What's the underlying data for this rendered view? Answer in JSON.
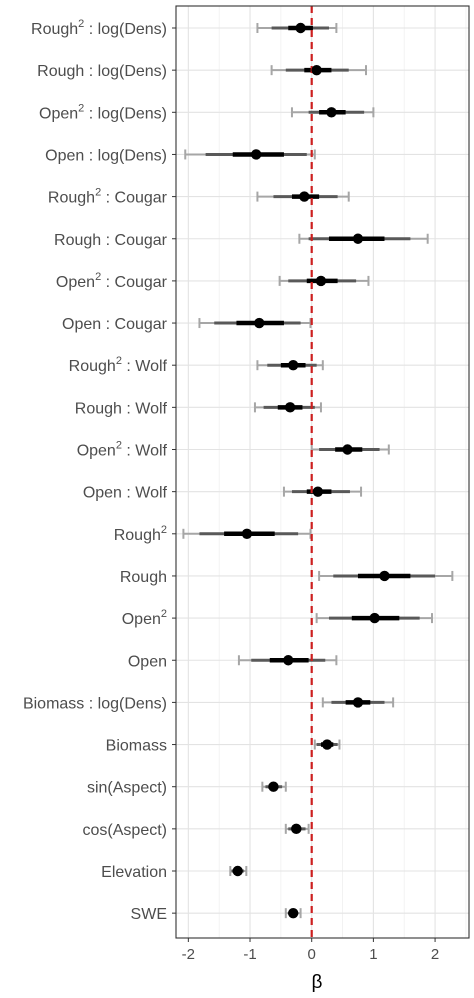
{
  "chart_data": {
    "type": "coefficient-plot",
    "title": "",
    "xlabel": "β",
    "ylabel": "",
    "xlim": [
      -2.2,
      2.55
    ],
    "x_ticks": [
      -2,
      -1,
      0,
      1,
      2
    ],
    "x_tick_labels": [
      "-2",
      "-1",
      "0",
      "1",
      "2"
    ],
    "grid": true,
    "reference_line": {
      "x": 0,
      "color": "#cc1f1f",
      "style": "dashed"
    },
    "intervals": [
      {
        "level": "outer",
        "color": "#a6a6a6"
      },
      {
        "level": "middle",
        "color": "#595959"
      },
      {
        "level": "inner",
        "color": "#000000"
      }
    ],
    "terms": [
      {
        "base": "Rough",
        "sup": "2",
        "suffix": " : log(Dens)",
        "est": -0.18,
        "inner": [
          -0.38,
          0.02
        ],
        "mid": [
          -0.65,
          0.28
        ],
        "outer": [
          -0.88,
          0.4
        ]
      },
      {
        "base": "Rough",
        "sup": "",
        "suffix": " : log(Dens)",
        "est": 0.08,
        "inner": [
          -0.12,
          0.32
        ],
        "mid": [
          -0.42,
          0.6
        ],
        "outer": [
          -0.65,
          0.88
        ]
      },
      {
        "base": "Open",
        "sup": "2",
        "suffix": " : log(Dens)",
        "est": 0.32,
        "inner": [
          0.12,
          0.55
        ],
        "mid": [
          -0.05,
          0.85
        ],
        "outer": [
          -0.32,
          1.0
        ]
      },
      {
        "base": "Open",
        "sup": "",
        "suffix": " : log(Dens)",
        "est": -0.9,
        "inner": [
          -1.28,
          -0.45
        ],
        "mid": [
          -1.72,
          -0.08
        ],
        "outer": [
          -2.05,
          0.05
        ]
      },
      {
        "base": "Rough",
        "sup": "2",
        "suffix": " : Cougar",
        "est": -0.12,
        "inner": [
          -0.32,
          0.12
        ],
        "mid": [
          -0.62,
          0.42
        ],
        "outer": [
          -0.88,
          0.6
        ]
      },
      {
        "base": "Rough",
        "sup": "",
        "suffix": " : Cougar",
        "est": 0.75,
        "inner": [
          0.28,
          1.18
        ],
        "mid": [
          -0.05,
          1.6
        ],
        "outer": [
          -0.2,
          1.88
        ]
      },
      {
        "base": "Open",
        "sup": "2",
        "suffix": " : Cougar",
        "est": 0.15,
        "inner": [
          -0.08,
          0.42
        ],
        "mid": [
          -0.38,
          0.72
        ],
        "outer": [
          -0.52,
          0.92
        ]
      },
      {
        "base": "Open",
        "sup": "",
        "suffix": " : Cougar",
        "est": -0.85,
        "inner": [
          -1.22,
          -0.45
        ],
        "mid": [
          -1.58,
          -0.18
        ],
        "outer": [
          -1.82,
          -0.02
        ]
      },
      {
        "base": "Rough",
        "sup": "2",
        "suffix": " : Wolf",
        "est": -0.3,
        "inner": [
          -0.5,
          -0.1
        ],
        "mid": [
          -0.72,
          0.08
        ],
        "outer": [
          -0.88,
          0.18
        ]
      },
      {
        "base": "Rough",
        "sup": "",
        "suffix": " : Wolf",
        "est": -0.35,
        "inner": [
          -0.55,
          -0.15
        ],
        "mid": [
          -0.78,
          0.05
        ],
        "outer": [
          -0.92,
          0.15
        ]
      },
      {
        "base": "Open",
        "sup": "2",
        "suffix": " : Wolf",
        "est": 0.58,
        "inner": [
          0.38,
          0.82
        ],
        "mid": [
          0.12,
          1.1
        ],
        "outer": [
          0.0,
          1.25
        ]
      },
      {
        "base": "Open",
        "sup": "",
        "suffix": " : Wolf",
        "est": 0.1,
        "inner": [
          -0.08,
          0.32
        ],
        "mid": [
          -0.32,
          0.62
        ],
        "outer": [
          -0.45,
          0.8
        ]
      },
      {
        "base": "Rough",
        "sup": "2",
        "suffix": "",
        "est": -1.05,
        "inner": [
          -1.42,
          -0.6
        ],
        "mid": [
          -1.82,
          -0.22
        ],
        "outer": [
          -2.08,
          -0.02
        ]
      },
      {
        "base": "Rough",
        "sup": "",
        "suffix": "",
        "est": 1.18,
        "inner": [
          0.75,
          1.6
        ],
        "mid": [
          0.35,
          2.0
        ],
        "outer": [
          0.12,
          2.28
        ]
      },
      {
        "base": "Open",
        "sup": "2",
        "suffix": "",
        "est": 1.02,
        "inner": [
          0.65,
          1.42
        ],
        "mid": [
          0.28,
          1.75
        ],
        "outer": [
          0.08,
          1.95
        ]
      },
      {
        "base": "Open",
        "sup": "",
        "suffix": "",
        "est": -0.38,
        "inner": [
          -0.68,
          -0.05
        ],
        "mid": [
          -0.98,
          0.22
        ],
        "outer": [
          -1.18,
          0.4
        ]
      },
      {
        "base": "Biomass",
        "sup": "",
        "suffix": " : log(Dens)",
        "est": 0.75,
        "inner": [
          0.55,
          0.95
        ],
        "mid": [
          0.32,
          1.18
        ],
        "outer": [
          0.18,
          1.32
        ]
      },
      {
        "base": "Biomass",
        "sup": "",
        "suffix": "",
        "est": 0.25,
        "inner": [
          0.15,
          0.35
        ],
        "mid": [
          0.08,
          0.42
        ],
        "outer": [
          0.05,
          0.45
        ]
      },
      {
        "base": "sin(Aspect)",
        "sup": "",
        "suffix": "",
        "est": -0.62,
        "inner": [
          -0.7,
          -0.55
        ],
        "mid": [
          -0.75,
          -0.48
        ],
        "outer": [
          -0.8,
          -0.42
        ]
      },
      {
        "base": "cos(Aspect)",
        "sup": "",
        "suffix": "",
        "est": -0.25,
        "inner": [
          -0.32,
          -0.18
        ],
        "mid": [
          -0.38,
          -0.1
        ],
        "outer": [
          -0.42,
          -0.05
        ]
      },
      {
        "base": "Elevation",
        "sup": "",
        "suffix": "",
        "est": -1.2,
        "inner": [
          -1.26,
          -1.14
        ],
        "mid": [
          -1.3,
          -1.1
        ],
        "outer": [
          -1.32,
          -1.06
        ]
      },
      {
        "base": "SWE",
        "sup": "",
        "suffix": "",
        "est": -0.3,
        "inner": [
          -0.35,
          -0.25
        ],
        "mid": [
          -0.38,
          -0.22
        ],
        "outer": [
          -0.42,
          -0.18
        ]
      }
    ]
  }
}
